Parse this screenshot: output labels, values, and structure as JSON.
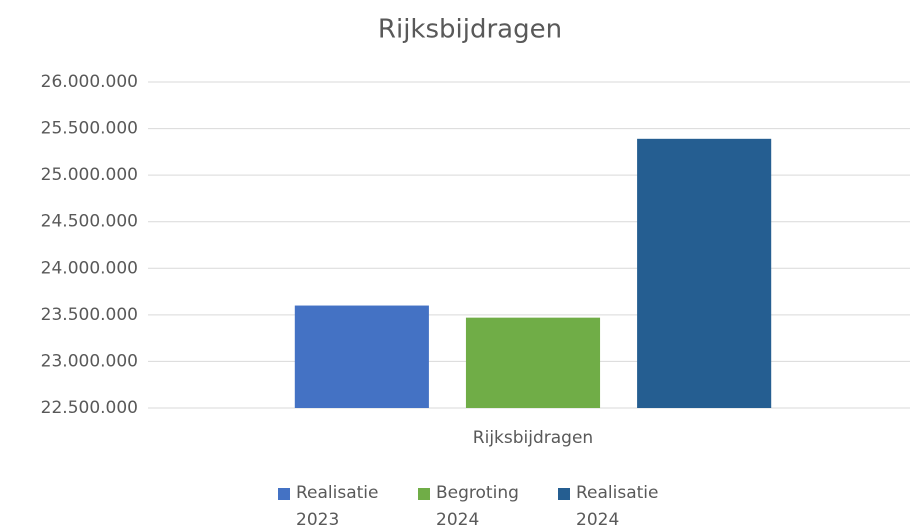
{
  "chart_data": {
    "type": "bar",
    "title": "Rijksbijdragen",
    "categories": [
      "Rijksbijdragen"
    ],
    "series": [
      {
        "name": "Realisatie 2023",
        "color": "#4472c4",
        "values": [
          23600000
        ]
      },
      {
        "name": "Begroting 2024",
        "color": "#70ad47",
        "values": [
          23470000
        ]
      },
      {
        "name": "Realisatie 2024",
        "color": "#255e91",
        "values": [
          25390000
        ]
      }
    ],
    "ylim": [
      22500000,
      26000000
    ],
    "yticks": [
      {
        "value": 22500000,
        "label": "22.500.000"
      },
      {
        "value": 23000000,
        "label": "23.000.000"
      },
      {
        "value": 23500000,
        "label": "23.500.000"
      },
      {
        "value": 24000000,
        "label": "24.000.000"
      },
      {
        "value": 24500000,
        "label": "24.500.000"
      },
      {
        "value": 25000000,
        "label": "25.000.000"
      },
      {
        "value": 25500000,
        "label": "25.500.000"
      },
      {
        "value": 26000000,
        "label": "26.000.000"
      }
    ],
    "grid": true,
    "legend": "bottom"
  }
}
